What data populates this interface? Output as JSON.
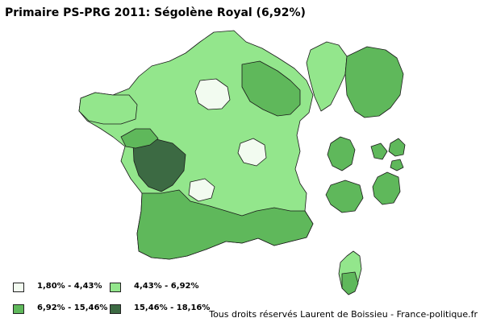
{
  "title": "Primaire PS-PRG 2011: Ségolène Royal (6,92%)",
  "colors": {
    "class1": "#f2fbf0",
    "class2": "#93e68c",
    "class3": "#5fb85b",
    "class4": "#3c6a43",
    "border": "#1a1a1a"
  },
  "legend": [
    {
      "label": "1,80% - 4,43%",
      "color_key": "class1"
    },
    {
      "label": "4,43% - 6,92%",
      "color_key": "class2"
    },
    {
      "label": "6,92% - 15,46%",
      "color_key": "class3"
    },
    {
      "label": "15,46% - 18,16%",
      "color_key": "class4"
    }
  ],
  "credit": "Tous droits réservés Laurent de Boissieu - France-politique.fr"
}
